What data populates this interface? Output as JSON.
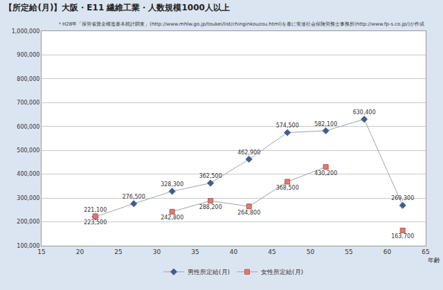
{
  "chart_data": {
    "type": "line",
    "title": "【所定給(月)】大阪・E11 繊維工業・人数規模1000人以上",
    "subtitle": "＊H28年「厚労省賃金構造基本統計調査」(http://www.mhlw.go.jp/toukei/list/chinginkouzou.html)を基に安達社会保険労務士事務所(http://www.fp-s.co.jp/)が作成",
    "x_label": "年齢",
    "x": [
      22,
      27,
      32,
      37,
      42,
      47,
      52,
      57,
      62
    ],
    "series": [
      {
        "name": "男性所定給(月)",
        "color": "#3f5f8f",
        "marker": "diamond",
        "values": [
          221100,
          276500,
          328300,
          362500,
          462900,
          574500,
          582100,
          630400,
          269300
        ],
        "value_labels": [
          "221,100",
          "276,500",
          "328,300",
          "362,500",
          "462,900",
          "574,500",
          "582,100",
          "630,400",
          "269,300"
        ]
      },
      {
        "name": "女性所定給(月)",
        "color": "#e07a72",
        "marker": "square",
        "values": [
          223500,
          null,
          242800,
          288200,
          264800,
          368500,
          430200,
          null,
          163700
        ],
        "value_labels": [
          "223,500",
          null,
          "242,800",
          "288,200",
          "264,800",
          "368,500",
          "430,200",
          null,
          "163,700"
        ]
      }
    ],
    "xlim": [
      15,
      65
    ],
    "xticks": [
      15,
      20,
      25,
      30,
      35,
      40,
      45,
      50,
      55,
      60,
      65
    ],
    "ylim": [
      100000,
      1000000
    ],
    "yticks": [
      {
        "value": 100000,
        "label": "100,000"
      },
      {
        "value": 200000,
        "label": "200,000"
      },
      {
        "value": 300000,
        "label": "300,000"
      },
      {
        "value": 400000,
        "label": "400,000"
      },
      {
        "value": 500000,
        "label": "500,000"
      },
      {
        "value": 600000,
        "label": "600,000"
      },
      {
        "value": 700000,
        "label": "700,000"
      },
      {
        "value": 800000,
        "label": "800,000"
      },
      {
        "value": 900000,
        "label": "900,000"
      },
      {
        "value": 1000000,
        "label": "1,000,000"
      }
    ],
    "grid": true,
    "legend": "bottom",
    "data_labels": true
  }
}
